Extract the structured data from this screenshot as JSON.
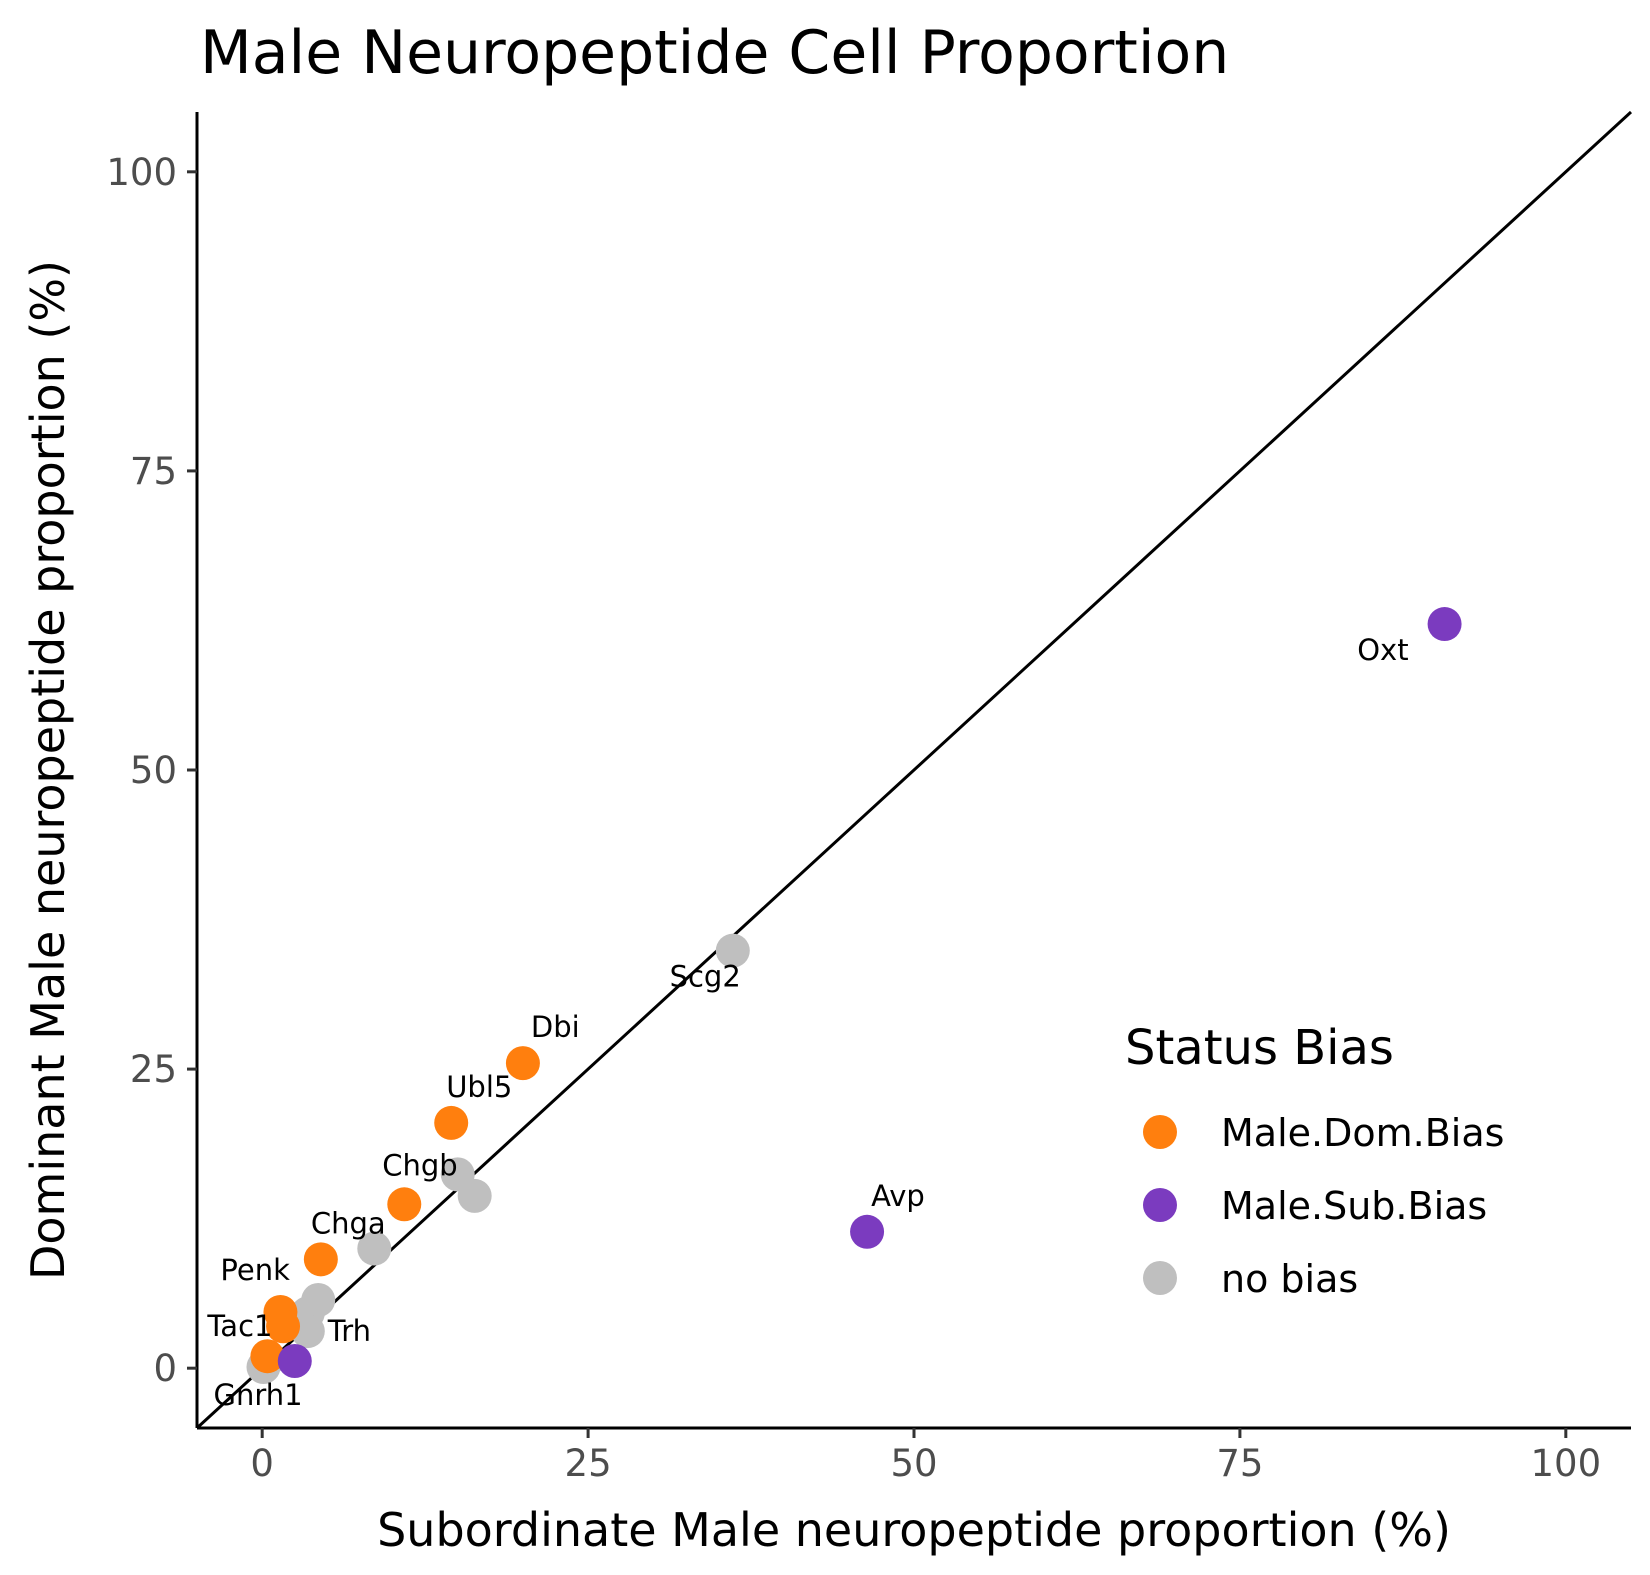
{
  "chart_data": {
    "type": "scatter",
    "title": "Male Neuropeptide Cell Proportion",
    "xlabel": "Subordinate Male neuropeptide proportion (%)",
    "ylabel": "Dominant Male neuropeptide proportion (%)",
    "xlim": [
      -5,
      105
    ],
    "ylim": [
      -5,
      105
    ],
    "xticks": [
      0,
      25,
      50,
      75,
      100
    ],
    "yticks": [
      0,
      25,
      50,
      75,
      100
    ],
    "xtick_labels": [
      "0",
      "25",
      "50",
      "75",
      "100"
    ],
    "ytick_labels": [
      "0",
      "25",
      "50",
      "75",
      "100"
    ],
    "grid": false,
    "reference_line": "y = x",
    "legend": {
      "title": "Status Bias",
      "placement": "bottom-right inside plot",
      "entries": [
        {
          "key": "Male.Dom.Bias",
          "label": "Male.Dom.Bias",
          "color": "#FF7F0E"
        },
        {
          "key": "Male.Sub.Bias",
          "label": "Male.Sub.Bias",
          "color": "#7B3BBF"
        },
        {
          "key": "no bias",
          "label": "no bias",
          "color": "#BFBFBF"
        }
      ]
    },
    "points": [
      {
        "label": "Oxt",
        "x": 90.7,
        "y": 62.2,
        "group": "Male.Sub.Bias"
      },
      {
        "label": "Avp",
        "x": 46.4,
        "y": 11.4,
        "group": "Male.Sub.Bias"
      },
      {
        "label": "",
        "x": 2.5,
        "y": 0.6,
        "group": "Male.Sub.Bias"
      },
      {
        "label": "Scg2",
        "x": 36.1,
        "y": 34.9,
        "group": "no bias"
      },
      {
        "label": "Dbi",
        "x": 20.0,
        "y": 25.5,
        "group": "Male.Dom.Bias"
      },
      {
        "label": "Ubl5",
        "x": 14.5,
        "y": 20.5,
        "group": "Male.Dom.Bias"
      },
      {
        "label": "Chgb",
        "x": 10.9,
        "y": 13.7,
        "group": "Male.Dom.Bias"
      },
      {
        "label": "",
        "x": 15.0,
        "y": 16.2,
        "group": "no bias"
      },
      {
        "label": "",
        "x": 16.3,
        "y": 14.4,
        "group": "no bias"
      },
      {
        "label": "Chga",
        "x": 4.5,
        "y": 9.1,
        "group": "Male.Dom.Bias"
      },
      {
        "label": "",
        "x": 8.6,
        "y": 10.0,
        "group": "no bias"
      },
      {
        "label": "Penk",
        "x": 1.4,
        "y": 4.7,
        "group": "Male.Dom.Bias"
      },
      {
        "label": "",
        "x": 1.6,
        "y": 3.5,
        "group": "Male.Dom.Bias"
      },
      {
        "label": "Tac1",
        "x": 0.4,
        "y": 1.0,
        "group": "Male.Dom.Bias"
      },
      {
        "label": "",
        "x": 4.3,
        "y": 5.7,
        "group": "no bias"
      },
      {
        "label": "",
        "x": 3.5,
        "y": 4.6,
        "group": "no bias"
      },
      {
        "label": "Trh",
        "x": 3.5,
        "y": 3.1,
        "group": "no bias"
      },
      {
        "label": "",
        "x": 0.5,
        "y": 0.8,
        "group": "no bias"
      },
      {
        "label": "Gnrh1",
        "x": 0.1,
        "y": 0.1,
        "group": "no bias"
      }
    ]
  }
}
